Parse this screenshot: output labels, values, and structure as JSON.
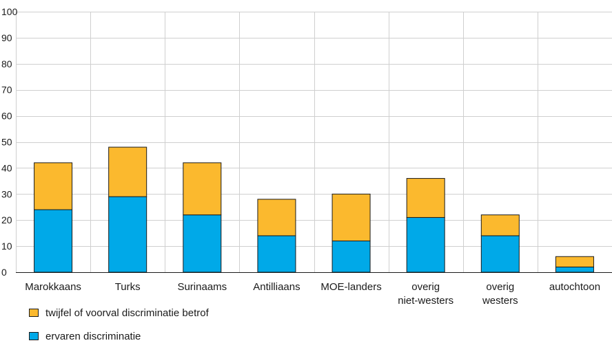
{
  "chart_data": {
    "type": "bar",
    "stacked": true,
    "title": "",
    "xlabel": "",
    "ylabel": "",
    "ylim": [
      0,
      100
    ],
    "yticks": [
      0,
      10,
      20,
      30,
      40,
      50,
      60,
      70,
      80,
      90,
      100
    ],
    "grid": true,
    "legend_position": "bottom-left",
    "categories": [
      [
        "Marokkaans"
      ],
      [
        "Turks"
      ],
      [
        "Surinaams"
      ],
      [
        "Antilliaans"
      ],
      [
        "MOE-landers"
      ],
      [
        "overig",
        "niet-westers"
      ],
      [
        "overig",
        "westers"
      ],
      [
        "autochtoon"
      ]
    ],
    "series": [
      {
        "name": "ervaren discriminatie",
        "color": "#00a9e8",
        "values": [
          24,
          29,
          22,
          14,
          12,
          21,
          14,
          2
        ]
      },
      {
        "name": "twijfel of voorval discriminatie betrof",
        "color": "#fbb92e",
        "values": [
          18,
          19,
          20,
          14,
          18,
          15,
          8,
          4
        ]
      }
    ]
  },
  "legend": {
    "items": [
      {
        "label": "twijfel of voorval discriminatie betrof",
        "color": "#fbb92e"
      },
      {
        "label": "ervaren discriminatie",
        "color": "#00a9e8"
      }
    ]
  }
}
